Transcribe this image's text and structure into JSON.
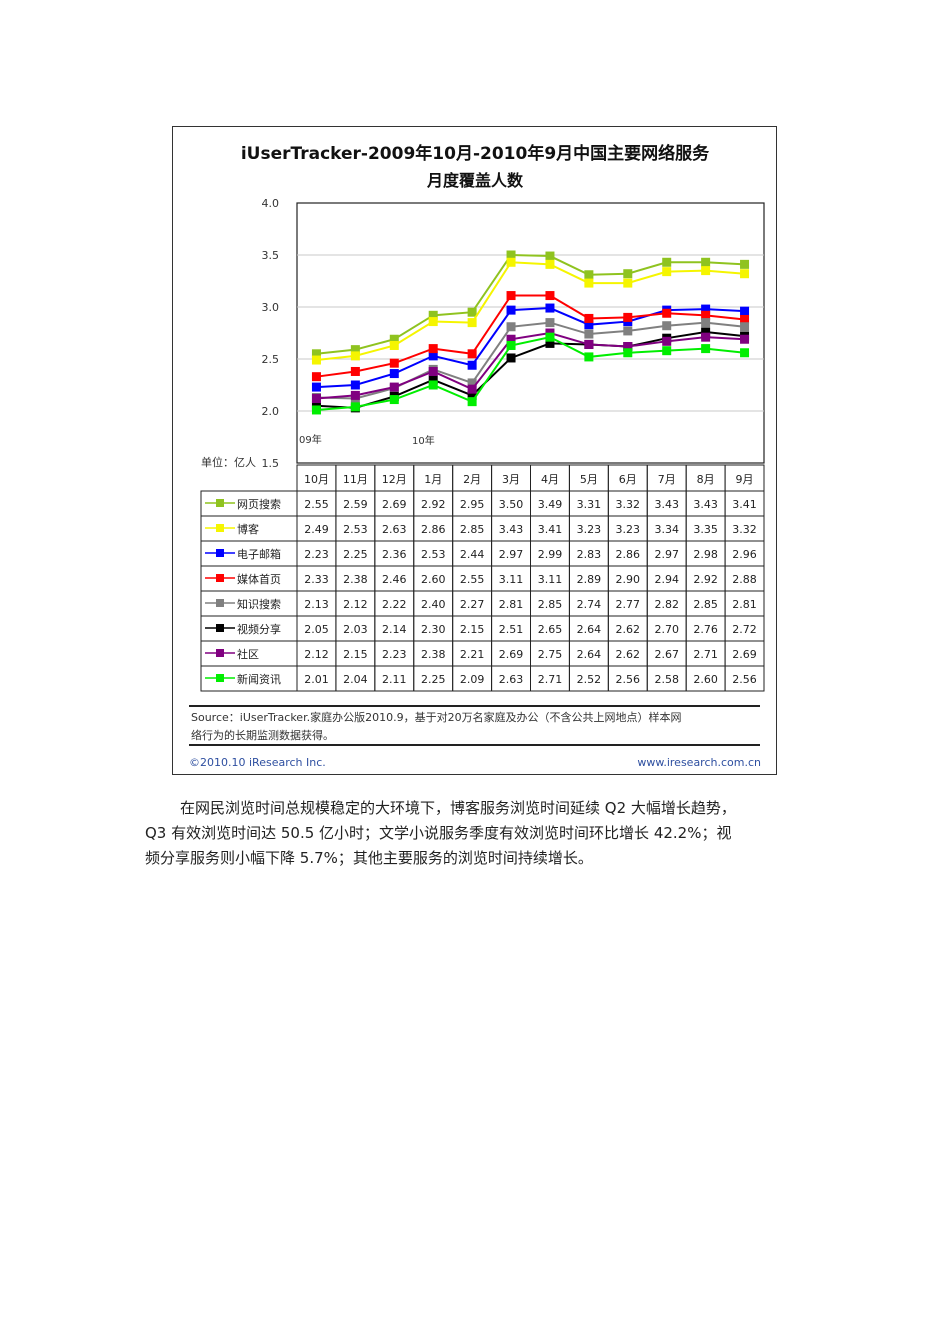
{
  "chart_data": {
    "type": "line",
    "title": "iUserTracker-2009年10月-2010年9月中国主要网络服务",
    "subtitle": "月度覆盖人数",
    "unit_label": "单位：亿人",
    "ylim": [
      1.5,
      4.0
    ],
    "yticks": [
      "4.0",
      "3.5",
      "3.0",
      "2.5",
      "2.0",
      "1.5"
    ],
    "grid": true,
    "year_labels": [
      "09年",
      "10年"
    ],
    "categories": [
      "10月",
      "11月",
      "12月",
      "1月",
      "2月",
      "3月",
      "4月",
      "5月",
      "6月",
      "7月",
      "8月",
      "9月"
    ],
    "series": [
      {
        "name": "网页搜索",
        "color": "#8fc31f",
        "values": [
          2.55,
          2.59,
          2.69,
          2.92,
          2.95,
          3.5,
          3.49,
          3.31,
          3.32,
          3.43,
          3.43,
          3.41
        ]
      },
      {
        "name": "博客",
        "color": "#f5f500",
        "values": [
          2.49,
          2.53,
          2.63,
          2.86,
          2.85,
          3.43,
          3.41,
          3.23,
          3.23,
          3.34,
          3.35,
          3.32
        ]
      },
      {
        "name": "电子邮箱",
        "color": "#0000ff",
        "values": [
          2.23,
          2.25,
          2.36,
          2.53,
          2.44,
          2.97,
          2.99,
          2.83,
          2.86,
          2.97,
          2.98,
          2.96
        ]
      },
      {
        "name": "媒体首页",
        "color": "#ff0000",
        "values": [
          2.33,
          2.38,
          2.46,
          2.6,
          2.55,
          3.11,
          3.11,
          2.89,
          2.9,
          2.94,
          2.92,
          2.88
        ]
      },
      {
        "name": "知识搜索",
        "color": "#808080",
        "values": [
          2.13,
          2.12,
          2.22,
          2.4,
          2.27,
          2.81,
          2.85,
          2.74,
          2.77,
          2.82,
          2.85,
          2.81
        ]
      },
      {
        "name": "视频分享",
        "color": "#000000",
        "values": [
          2.05,
          2.03,
          2.14,
          2.3,
          2.15,
          2.51,
          2.65,
          2.64,
          2.62,
          2.7,
          2.76,
          2.72
        ]
      },
      {
        "name": "社区",
        "color": "#800080",
        "values": [
          2.12,
          2.15,
          2.23,
          2.38,
          2.21,
          2.69,
          2.75,
          2.64,
          2.62,
          2.67,
          2.71,
          2.69
        ]
      },
      {
        "name": "新闻资讯",
        "color": "#00ee00",
        "values": [
          2.01,
          2.04,
          2.11,
          2.25,
          2.09,
          2.63,
          2.71,
          2.52,
          2.56,
          2.58,
          2.6,
          2.56
        ]
      }
    ],
    "source_line1": "Source：iUserTracker.家庭办公版2010.9，基于对20万名家庭及办公（不含公共上网地点）样本网",
    "source_line2": "络行为的长期监测数据获得。",
    "copyright": "©2010.10 iResearch Inc.",
    "website": "www.iresearch.com.cn"
  },
  "body_text": {
    "line1": "在网民浏览时间总规模稳定的大环境下，博客服务浏览时间延续 Q2 大幅增长趋势，",
    "line2": "Q3 有效浏览时间达 50.5 亿小时；文学小说服务季度有效浏览时间环比增长 42.2%；视",
    "line3": "频分享服务则小幅下降 5.7%；其他主要服务的浏览时间持续增长。"
  }
}
